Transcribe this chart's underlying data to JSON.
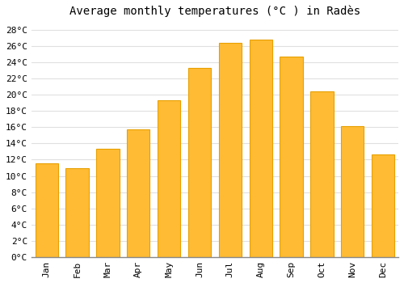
{
  "title": "Average monthly temperatures (°C ) in Radès",
  "months": [
    "Jan",
    "Feb",
    "Mar",
    "Apr",
    "May",
    "Jun",
    "Jul",
    "Aug",
    "Sep",
    "Oct",
    "Nov",
    "Dec"
  ],
  "values": [
    11.5,
    11.0,
    13.3,
    15.7,
    19.3,
    23.3,
    26.4,
    26.8,
    24.7,
    20.4,
    16.1,
    12.6
  ],
  "bar_color": "#FFBB33",
  "bar_edge_color": "#E8A000",
  "background_color": "#FFFFFF",
  "grid_color": "#E0E0E0",
  "ylim": [
    0,
    29
  ],
  "ytick_step": 2,
  "title_fontsize": 10,
  "tick_fontsize": 8,
  "font_family": "monospace"
}
